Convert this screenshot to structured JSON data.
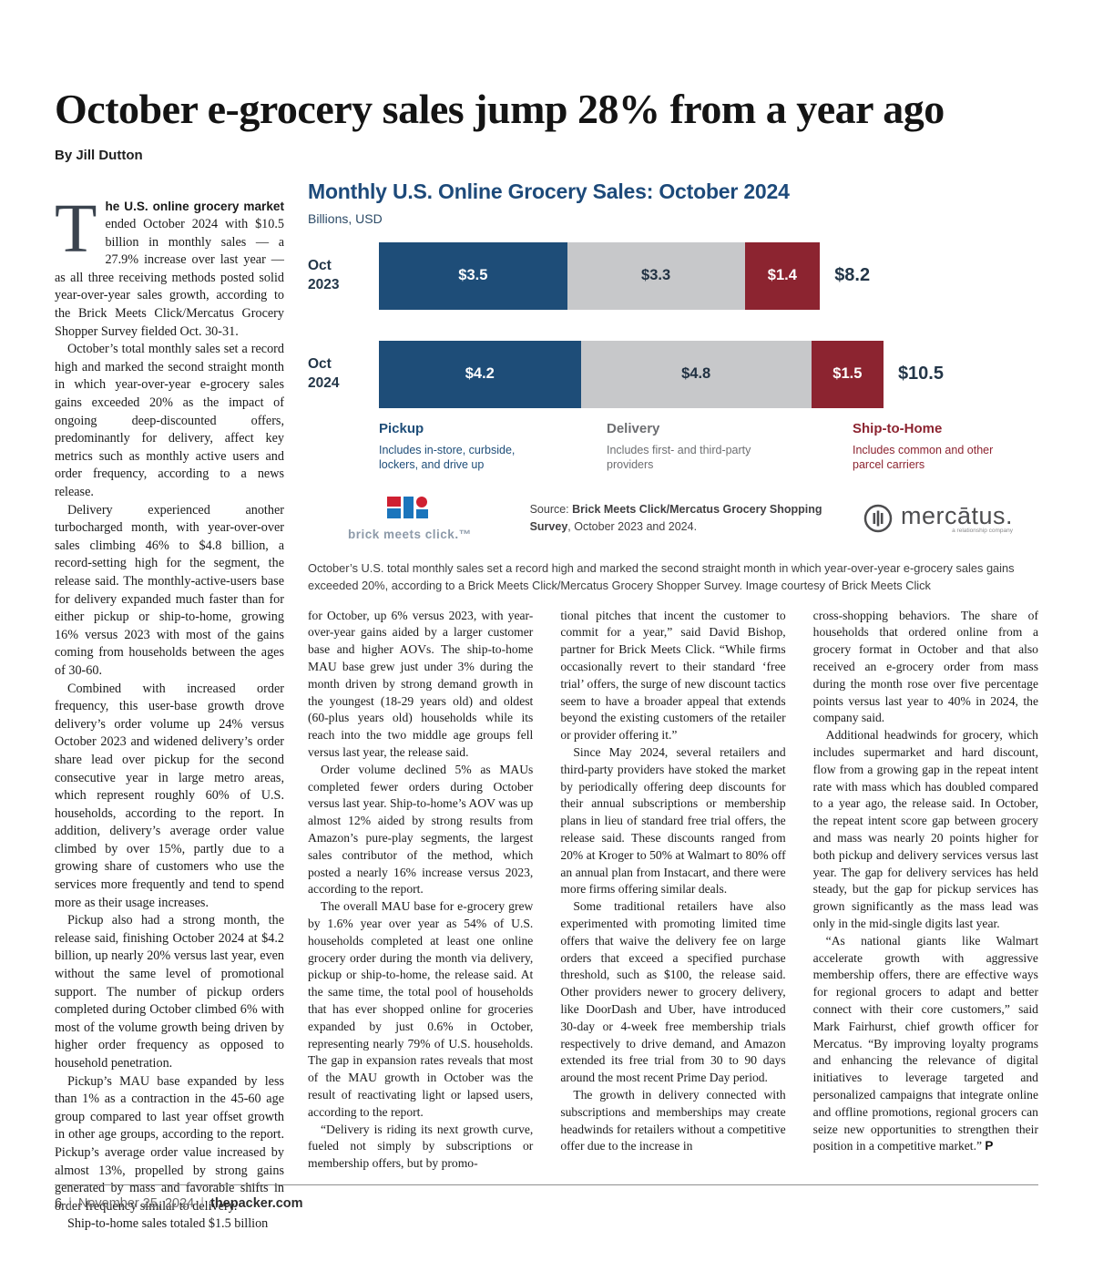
{
  "page": {
    "headline": "October e-grocery sales jump 28% from a year ago",
    "byline": "By Jill Dutton",
    "footer": {
      "page_number": "6",
      "separator": "|",
      "date": "November 25, 2024",
      "site": "thepacker.com"
    }
  },
  "article": {
    "dropcap": "T",
    "lead_bold": "he U.S. online grocery market",
    "lead_rest": " ended October 2024 with $10.5 billion in monthly sales — a 27.9% increase over last year — as all three receiving methods posted solid year-over-year sales growth, according to the Brick Meets Click/Mercatus Grocery Shopper Survey fielded Oct. 30-31.",
    "col1_paragraphs": [
      "October’s total monthly sales set a record high and marked the second straight month in which year-over-year e-grocery sales gains exceeded 20% as the impact of ongoing deep-discounted offers, predominantly for delivery, affect key metrics such as monthly active users and order frequency, according to a news release.",
      "Delivery experienced another turbocharged month, with year-over-over sales climbing 46% to $4.8 billion, a record-setting high for the segment, the release said. The monthly-active-users base for delivery expanded much faster than for either pickup or ship-to-home, growing 16% versus 2023 with most of the gains coming from households between the ages of 30-60.",
      "Combined with increased order frequency, this user-base growth drove delivery’s order volume up 24% versus October 2023 and widened delivery’s order share lead over pickup for the second consecutive year in large metro areas, which represent roughly 60% of U.S. households, according to the report. In addition, delivery’s average order value climbed by over 15%, partly due to a growing share of customers who use the services more frequently and tend to spend more as their usage increases.",
      "Pickup also had a strong month, the release said, finishing October 2024 at $4.2 billion, up nearly 20% versus last year, even without the same level of promotional support. The number of pickup orders completed during October climbed 6% with most of the volume growth being driven by higher order frequency as opposed to household penetration.",
      "Pickup’s MAU base expanded by less than 1% as a contraction in the 45-60 age group compared to last year offset growth in other age groups, according to the report. Pickup’s average order value increased by almost 13%, propelled by strong gains generated by mass and favorable shifts in order frequency similar to delivery.",
      "Ship-to-home sales totaled $1.5 billion"
    ],
    "col2_paragraphs": [
      "for October, up 6% versus 2023, with year-over-year gains aided by a larger customer base and higher AOVs. The ship-to-home MAU base grew just under 3% during the month driven by strong demand growth in the youngest (18-29 years old) and oldest (60-plus years old) households while its reach into the two middle age groups fell versus last year, the release said.",
      "Order volume declined 5% as MAUs completed fewer orders during October versus last year. Ship-to-home’s AOV was up almost 12% aided by strong results from Amazon’s pure-play segments, the largest sales contributor of the method, which posted a nearly 16% increase versus 2023, according to the report.",
      "The overall MAU base for e-grocery grew by 1.6% year over year as 54% of U.S. households completed at least one online grocery order during the month via delivery, pickup or ship-to-home, the release said. At the same time, the total pool of households that has ever shopped online for groceries expanded by just 0.6% in October, representing nearly 79% of U.S. households. The gap in expansion rates reveals that most of the MAU growth in October was the result of reactivating light or lapsed users, according to the report.",
      "“Delivery is riding its next growth curve, fueled not simply by subscriptions or membership offers, but by promo-"
    ],
    "col3_paragraphs": [
      "tional pitches that incent the customer to commit for a year,” said David Bishop, partner for Brick Meets Click. “While firms occasionally revert to their standard ‘free trial’ offers, the surge of new discount tactics seem to have a broader appeal that extends beyond the existing customers of the retailer or provider offering it.”",
      "Since May 2024, several retailers and third-party providers have stoked the market by periodically offering deep discounts for their annual subscriptions or membership plans in lieu of standard free trial offers, the release said. These discounts ranged from 20% at Kroger to 50% at Walmart to 80% off an annual plan from Instacart, and there were more firms offering similar deals.",
      "Some traditional retailers have also experimented with promoting limited time offers that waive the delivery fee on large orders that exceed a specified purchase threshold, such as $100, the release said. Other providers newer to grocery delivery, like DoorDash and Uber, have introduced 30-day or 4-week free membership trials respectively to drive demand, and Amazon extended its free trial from 30 to 90 days around the most recent Prime Day period.",
      "The growth in delivery connected with subscriptions and memberships may create headwinds for retailers without a competitive offer due to the increase in"
    ],
    "col4_paragraphs": [
      "cross-shopping behaviors. The share of households that ordered online from a grocery format in October and that also received an e-grocery order from mass during the month rose over five percentage points versus last year to 40% in 2024, the company said.",
      "Additional headwinds for grocery, which includes supermarket and hard discount, flow from a growing gap in the repeat intent rate with mass which has doubled compared to a year ago, the release said. In October, the repeat intent score gap between grocery and mass was nearly 20 points higher for both pickup and delivery services versus last year. The gap for delivery services has held steady, but the gap for pickup services has grown significantly as the mass lead was only in the mid-single digits last year."
    ],
    "col4_last": "“As national giants like Walmart accelerate growth with aggressive membership offers, there are effective ways for regional grocers to adapt and better connect with their core customers,” said Mark Fairhurst, chief growth officer for Mercatus. “By improving loyalty programs and enhancing the relevance of digital initiatives to leverage targeted and personalized campaigns that integrate online and offline promotions, regional grocers can seize new opportunities to strengthen their position in a competitive market.”",
    "end_mark": "P"
  },
  "chart_data": {
    "type": "bar",
    "orientation": "horizontal_stacked",
    "title": "Monthly U.S. Online Grocery Sales: October 2024",
    "subtitle": "Billions, USD",
    "categories": [
      "Oct 2023",
      "Oct 2024"
    ],
    "segments": [
      "Pickup",
      "Delivery",
      "Ship-to-Home"
    ],
    "segment_colors": [
      "#1e4d78",
      "#c7c8ca",
      "#8c2430"
    ],
    "segment_label_colors": [
      "#ffffff",
      "#223243",
      "#ffffff"
    ],
    "xmax": 10.5,
    "rows": [
      {
        "label": "Oct 2023",
        "values": [
          3.5,
          3.3,
          1.4
        ],
        "total": 8.2,
        "value_labels": [
          "$3.5",
          "$3.3",
          "$1.4"
        ],
        "total_label": "$8.2"
      },
      {
        "label": "Oct 2024",
        "values": [
          4.2,
          4.8,
          1.5
        ],
        "total": 10.5,
        "value_labels": [
          "$4.2",
          "$4.8",
          "$1.5"
        ],
        "total_label": "$10.5"
      }
    ],
    "legend": [
      {
        "title": "Pickup",
        "desc": "Includes in-store, curbside, lockers, and drive up",
        "color": "#1e4d78"
      },
      {
        "title": "Delivery",
        "desc": "Includes first- and third-party providers",
        "color": "#6d6e71"
      },
      {
        "title": "Ship-to-Home",
        "desc": "Includes common and other parcel carriers",
        "color": "#8c2430"
      }
    ],
    "source_prefix": "Source: ",
    "source_bold": "Brick Meets Click/Mercatus Grocery Shopping Survey",
    "source_rest": ", October 2023 and 2024.",
    "logos": {
      "left": "brick meets click.™",
      "right": "mercātus.",
      "right_tagline": "a relationship company"
    }
  },
  "caption": "October’s U.S. total monthly sales set a record high and marked the second straight month in which year-over-year e-grocery sales gains exceeded 20%, according to a Brick Meets Click/Mercatus Grocery Shopper Survey. Image courtesy of Brick Meets Click"
}
